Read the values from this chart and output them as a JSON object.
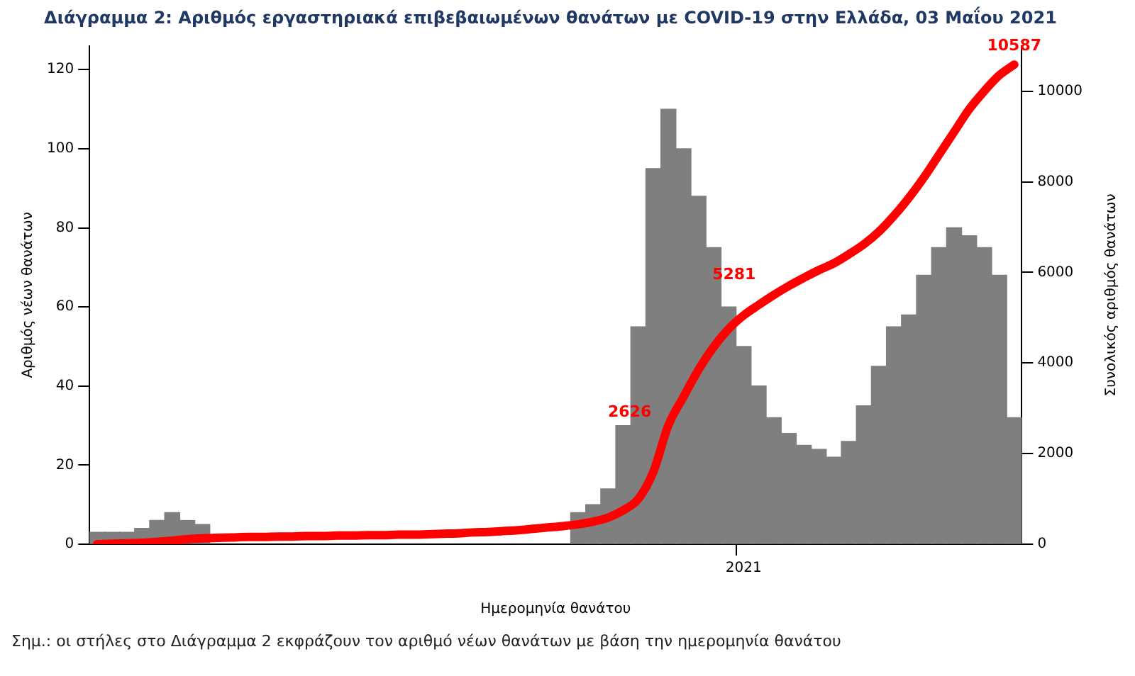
{
  "chart_data": {
    "type": "bar",
    "title": "Διάγραμμα 2: Αριθμός εργαστηριακά επιβεβαιωμένων θανάτων με COVID-19 στην Ελλάδα, 03 Μαΐου 2021",
    "xlabel": "Ημερομηνία θανάτου",
    "ylabel": "Αριθμός νέων θανάτων",
    "y2label": "Συνολικός αριθμός θανάτων",
    "annotations": [
      "Σημ.: οι στήλες στο Διάγραμμα 2 εκφράζουν τον αριθμό νέων θανάτων με βάση την ημερομηνία θανάτου"
    ],
    "categories": [
      null,
      null,
      null,
      null,
      null,
      null,
      null,
      null,
      null,
      null,
      null,
      null,
      null,
      null,
      null,
      null,
      null,
      null,
      null,
      null,
      null,
      null,
      null,
      null,
      null,
      null,
      null,
      null,
      null,
      null,
      null,
      null,
      null,
      null,
      null,
      null,
      null,
      null,
      null,
      null,
      null,
      null,
      null,
      "2021",
      null,
      null,
      null,
      null,
      null,
      null,
      null,
      null,
      null,
      null,
      null,
      null,
      null,
      null,
      null,
      null,
      null,
      null
    ],
    "ylim": [
      0,
      126
    ],
    "yticks": [
      0,
      20,
      40,
      60,
      80,
      100,
      120
    ],
    "y2lim": [
      0,
      11000
    ],
    "y2ticks": [
      0,
      2000,
      4000,
      6000,
      8000,
      10000
    ],
    "grid": false,
    "legend": false,
    "marker": "none",
    "line_style": "solid",
    "series": [
      {
        "color": "#7f7f7f",
        "values": [
          3,
          3,
          3,
          4,
          6,
          8,
          6,
          5,
          null,
          null,
          null,
          null,
          null,
          null,
          null,
          null,
          null,
          null,
          null,
          null,
          null,
          null,
          null,
          null,
          null,
          null,
          null,
          null,
          null,
          null,
          null,
          null,
          8,
          10,
          14,
          30,
          55,
          95,
          110,
          100,
          88,
          75,
          60,
          50,
          40,
          32,
          28,
          25,
          24,
          22,
          26,
          35,
          45,
          55,
          58,
          68,
          75,
          80,
          78,
          75,
          68,
          32
        ]
      },
      {
        "type": "line",
        "axis": "y2",
        "color": "#ff0000",
        "values": [
          0,
          10,
          20,
          30,
          50,
          80,
          110,
          130,
          140,
          150,
          160,
          160,
          170,
          170,
          180,
          180,
          190,
          190,
          200,
          200,
          210,
          210,
          220,
          230,
          240,
          260,
          270,
          290,
          310,
          340,
          370,
          400,
          440,
          500,
          590,
          750,
          1000,
          1600,
          2626,
          3250,
          3850,
          4350,
          4750,
          5050,
          5281,
          5500,
          5700,
          5880,
          6050,
          6200,
          6400,
          6620,
          6900,
          7250,
          7650,
          8100,
          8600,
          9100,
          9600,
          10000,
          10350,
          10587
        ],
        "value_labels": [
          null,
          null,
          null,
          null,
          null,
          null,
          null,
          null,
          null,
          null,
          null,
          null,
          null,
          null,
          null,
          null,
          null,
          null,
          null,
          null,
          null,
          null,
          null,
          null,
          null,
          null,
          null,
          null,
          null,
          null,
          null,
          null,
          null,
          null,
          null,
          null,
          null,
          null,
          "2626",
          null,
          null,
          null,
          null,
          null,
          "5281",
          null,
          null,
          null,
          null,
          null,
          null,
          null,
          null,
          null,
          null,
          null,
          null,
          null,
          null,
          null,
          null,
          "10587"
        ]
      }
    ]
  }
}
